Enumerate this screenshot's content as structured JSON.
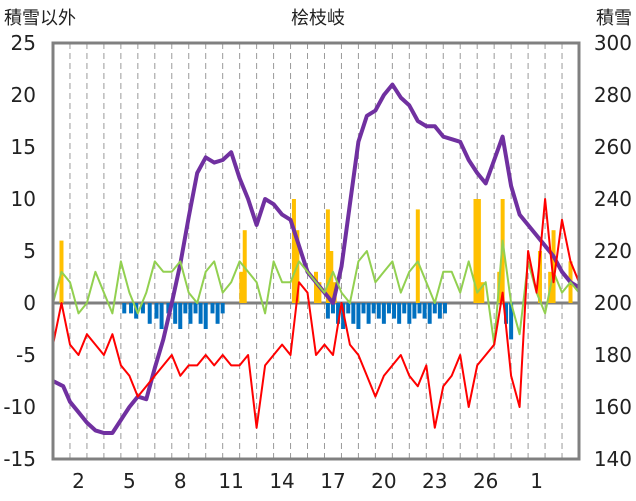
{
  "chart_data": {
    "type": "line",
    "title": "桧枝岐",
    "ylabel_left": "積雪以外",
    "ylabel_right": "積雪",
    "x_ticks": [
      "2",
      "5",
      "8",
      "11",
      "14",
      "17",
      "20",
      "23",
      "26",
      "1"
    ],
    "x_range": [
      0,
      31
    ],
    "y_left_range": [
      -15,
      25
    ],
    "y_left_ticks": [
      -15,
      -10,
      -5,
      0,
      5,
      10,
      15,
      20,
      25
    ],
    "y_right_range": [
      140,
      300
    ],
    "y_right_ticks": [
      140,
      160,
      180,
      200,
      220,
      240,
      260,
      280,
      300
    ],
    "grid": "vertical-dashed",
    "colors": {
      "snow_depth": "#7030A0",
      "max_temp": "#92D050",
      "min_temp": "#FF0000",
      "precip": "#FFC000",
      "snow_change": "#0070C0",
      "frame": "#808080"
    },
    "series": [
      {
        "key": "snow_depth",
        "axis": "right",
        "x": [
          0,
          0.6,
          1,
          1.5,
          2,
          2.5,
          3,
          3.5,
          4,
          4.5,
          5,
          5.5,
          6,
          6.5,
          7,
          7.5,
          8,
          8.5,
          9,
          9.5,
          10,
          10.5,
          11,
          11.5,
          12,
          12.5,
          13,
          13.5,
          14,
          14.5,
          15,
          15.5,
          16,
          16.5,
          17,
          17.5,
          18,
          18.5,
          19,
          19.5,
          20,
          20.5,
          21,
          21.5,
          22,
          22.5,
          23,
          23.5,
          24,
          24.5,
          25,
          25.5,
          26,
          26.5,
          27,
          27.5,
          28,
          28.5,
          29,
          29.5,
          30,
          30.5,
          31
        ],
        "values": [
          170,
          168,
          162,
          158,
          154,
          151,
          150,
          150,
          155,
          160,
          164,
          163,
          175,
          186,
          200,
          215,
          233,
          250,
          256,
          254,
          255,
          258,
          248,
          240,
          230,
          240,
          238,
          234,
          232,
          222,
          212,
          208,
          204,
          200,
          214,
          238,
          262,
          272,
          274,
          280,
          284,
          279,
          276,
          270,
          268,
          268,
          264,
          263,
          262,
          255,
          250,
          246,
          255,
          264,
          245,
          234,
          230,
          226,
          222,
          218,
          212,
          208,
          206
        ]
      },
      {
        "key": "max_temp",
        "axis": "left",
        "x": [
          0,
          0.5,
          1,
          1.5,
          2,
          2.5,
          3,
          3.5,
          4,
          4.5,
          5,
          5.5,
          6,
          6.5,
          7,
          7.5,
          8,
          8.5,
          9,
          9.5,
          10,
          10.5,
          11,
          11.5,
          12,
          12.5,
          13,
          13.5,
          14,
          14.5,
          15,
          15.5,
          16,
          16.5,
          17,
          17.5,
          18,
          18.5,
          19,
          19.5,
          20,
          20.5,
          21,
          21.5,
          22,
          22.5,
          23,
          23.5,
          24,
          24.5,
          25,
          25.5,
          26,
          26.5,
          27,
          27.5,
          28,
          28.5,
          29,
          29.5,
          30,
          30.5,
          31
        ],
        "values": [
          0,
          3,
          2,
          -1,
          0,
          3,
          1,
          -1,
          4,
          1,
          -1,
          1,
          4,
          3,
          3,
          4,
          1,
          0,
          3,
          4,
          1,
          2,
          4,
          3,
          2,
          -1,
          4,
          2,
          2,
          4,
          3,
          2,
          1,
          3,
          1,
          0,
          4,
          5,
          2,
          3,
          4,
          1,
          3,
          4,
          2,
          0,
          3,
          3,
          1,
          4,
          1,
          2,
          -4,
          6,
          0,
          -3,
          4,
          1,
          -1,
          3,
          1,
          2,
          1
        ]
      },
      {
        "key": "min_temp",
        "axis": "left",
        "x": [
          0,
          0.5,
          1,
          1.5,
          2,
          2.5,
          3,
          3.5,
          4,
          4.5,
          5,
          5.5,
          6,
          6.5,
          7,
          7.5,
          8,
          8.5,
          9,
          9.5,
          10,
          10.5,
          11,
          11.5,
          12,
          12.5,
          13,
          13.5,
          14,
          14.5,
          15,
          15.5,
          16,
          16.5,
          17,
          17.5,
          18,
          18.5,
          19,
          19.5,
          20,
          20.5,
          21,
          21.5,
          22,
          22.5,
          23,
          23.5,
          24,
          24.5,
          25,
          25.5,
          26,
          26.5,
          27,
          27.5,
          28,
          28.5,
          29,
          29.5,
          30,
          30.5,
          31
        ],
        "values": [
          -4,
          0,
          -4,
          -5,
          -3,
          -4,
          -5,
          -3,
          -6,
          -7,
          -9,
          -8,
          -7,
          -6,
          -5,
          -7,
          -6,
          -6,
          -5,
          -6,
          -5,
          -6,
          -6,
          -5,
          -12,
          -6,
          -5,
          -4,
          -5,
          2,
          1,
          -5,
          -4,
          -5,
          0,
          -4,
          -5,
          -7,
          -9,
          -7,
          -6,
          -5,
          -7,
          -8,
          -6,
          -12,
          -8,
          -7,
          -5,
          -10,
          -6,
          -5,
          -4,
          1,
          -7,
          -10,
          5,
          1,
          10,
          2,
          8,
          4,
          2
        ]
      },
      {
        "key": "precip",
        "axis": "left",
        "style": "bars",
        "x": [
          0.5,
          11.1,
          11.3,
          14.2,
          14.4,
          15.5,
          15.7,
          16.2,
          16.4,
          16.6,
          21.5,
          24.9,
          25.1,
          25.3,
          26.3,
          26.5,
          28.7,
          29.3,
          29.5,
          30.5
        ],
        "values": [
          6,
          3,
          7,
          10,
          7,
          3,
          2,
          9,
          5,
          2,
          9,
          10,
          10,
          2,
          3,
          10,
          5,
          3,
          7,
          4
        ]
      },
      {
        "key": "snow_change",
        "axis": "left",
        "style": "bars",
        "x": [
          4.2,
          4.6,
          4.9,
          5.3,
          5.7,
          6.1,
          6.4,
          6.8,
          7.2,
          7.5,
          7.8,
          8.1,
          8.4,
          8.7,
          9.0,
          9.4,
          9.7,
          10.0,
          16.2,
          16.5,
          16.8,
          17.1,
          17.4,
          17.7,
          18.0,
          18.3,
          18.6,
          18.9,
          19.2,
          19.5,
          19.8,
          20.1,
          20.4,
          20.7,
          21.0,
          21.3,
          21.6,
          21.9,
          22.2,
          22.5,
          22.8,
          23.1,
          26.7,
          27.0
        ],
        "values": [
          -1,
          -1,
          -1.5,
          -1,
          -2,
          -1.5,
          -2.5,
          -1,
          -2,
          -2.5,
          -1,
          -2,
          -1,
          -2,
          -2.5,
          -1,
          -2,
          -1,
          -1.5,
          -1,
          -2,
          -2.5,
          -1,
          -2,
          -2.5,
          -1,
          -2,
          -1,
          -1.5,
          -2,
          -1,
          -1.5,
          -2,
          -1,
          -2,
          -1.5,
          -1,
          -1.5,
          -2,
          -1,
          -1.5,
          -1,
          -2,
          -3.5
        ]
      }
    ]
  }
}
